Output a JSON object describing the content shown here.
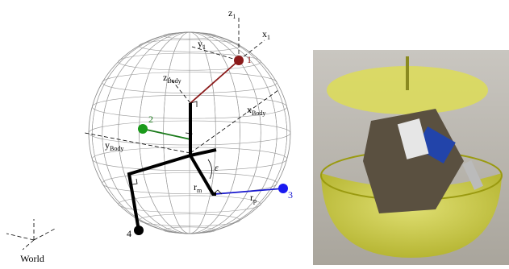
{
  "axis_labels": [
    {
      "main": "z",
      "sub": "1"
    },
    {
      "main": "x",
      "sub": "1"
    },
    {
      "main": "y",
      "sub": "1"
    },
    {
      "main": "z",
      "sub": "Body"
    },
    {
      "main": "x",
      "sub": "Body"
    },
    {
      "main": "y",
      "sub": "Body"
    },
    {
      "main": "r",
      "sub": "m"
    },
    {
      "main": "r",
      "sub": "p"
    }
  ],
  "points": [
    "1",
    "2",
    "3",
    "4"
  ],
  "angle": "ε",
  "world": "World"
}
